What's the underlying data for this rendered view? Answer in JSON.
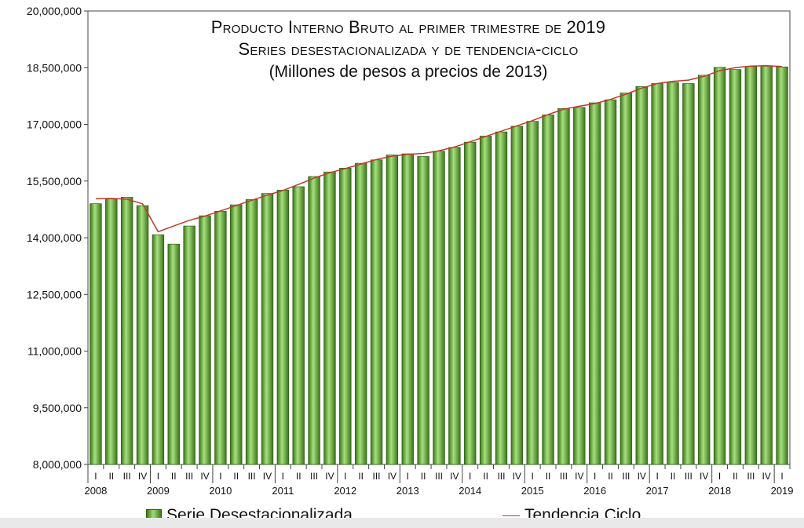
{
  "chart_data": {
    "type": "bar",
    "title": "Producto Interno Bruto al primer trimestre de 2019",
    "subtitle": "Series desestacionalizada y de tendencia-ciclo",
    "units": "(Millones de pesos a precios de 2013)",
    "ylim": [
      8000000,
      20000000
    ],
    "yticks": [
      "8,000,000",
      "9,500,000",
      "11,000,000",
      "12,500,000",
      "14,000,000",
      "15,500,000",
      "17,000,000",
      "18,500,000",
      "20,000,000"
    ],
    "ytick_values": [
      8000000,
      9500000,
      11000000,
      12500000,
      14000000,
      15500000,
      17000000,
      18500000,
      20000000
    ],
    "quarter_labels": [
      "I",
      "II",
      "III",
      "IV",
      "I",
      "II",
      "III",
      "IV",
      "I",
      "II",
      "III",
      "IV",
      "I",
      "II",
      "III",
      "IV",
      "I",
      "II",
      "III",
      "IV",
      "I",
      "II",
      "III",
      "IV",
      "I",
      "II",
      "III",
      "IV",
      "I",
      "II",
      "III",
      "IV",
      "I",
      "II",
      "III",
      "IV",
      "I",
      "II",
      "III",
      "IV",
      "I",
      "II",
      "III",
      "IV",
      "I"
    ],
    "years": [
      "2008",
      "2009",
      "2010",
      "2011",
      "2012",
      "2013",
      "2014",
      "2015",
      "2016",
      "2017",
      "2018",
      "2019"
    ],
    "grid": false,
    "legend_placement": "bottom",
    "series": [
      {
        "name": "Serie Desestacionalizada",
        "kind": "bar",
        "color": "#4c8a26",
        "values": [
          14900000,
          15030000,
          15070000,
          14850000,
          14080000,
          13830000,
          14310000,
          14580000,
          14700000,
          14870000,
          15010000,
          15170000,
          15260000,
          15350000,
          15620000,
          15740000,
          15840000,
          15970000,
          16060000,
          16190000,
          16220000,
          16150000,
          16290000,
          16390000,
          16530000,
          16690000,
          16800000,
          16950000,
          17080000,
          17250000,
          17420000,
          17450000,
          17570000,
          17650000,
          17830000,
          18000000,
          18080000,
          18110000,
          18080000,
          18300000,
          18510000,
          18450000,
          18530000,
          18540000,
          18520000
        ]
      },
      {
        "name": "Tendencia Ciclo",
        "kind": "line",
        "color": "#c0392b",
        "values": [
          15030000,
          15040000,
          15020000,
          14900000,
          14160000,
          14310000,
          14460000,
          14570000,
          14710000,
          14850000,
          14990000,
          15130000,
          15250000,
          15410000,
          15580000,
          15720000,
          15830000,
          15950000,
          16070000,
          16160000,
          16210000,
          16230000,
          16300000,
          16400000,
          16540000,
          16680000,
          16820000,
          16960000,
          17100000,
          17260000,
          17400000,
          17480000,
          17550000,
          17660000,
          17800000,
          17960000,
          18080000,
          18140000,
          18170000,
          18270000,
          18420000,
          18500000,
          18540000,
          18550000,
          18530000
        ]
      }
    ]
  }
}
